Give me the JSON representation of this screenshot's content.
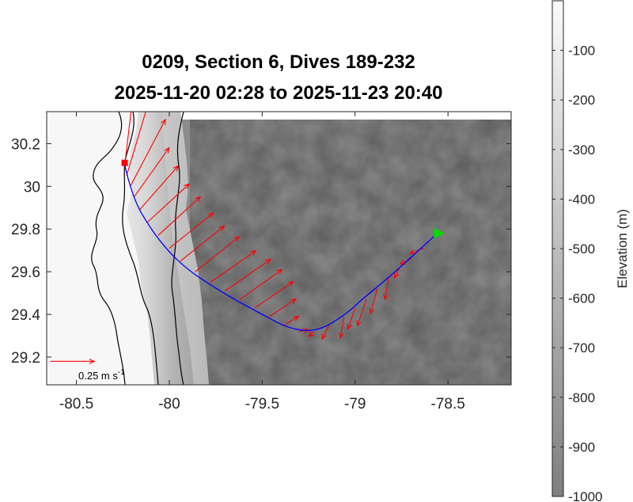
{
  "chart_data": {
    "type": "map",
    "title_line1": "0209, Section 6, Dives 189-232",
    "title_line2": "2025-11-20 02:28 to 2025-11-23 20:40",
    "x_ticks": [
      -80.5,
      -80,
      -79.5,
      -79,
      -78.5
    ],
    "x_tick_labels": [
      "-80.5",
      "-80",
      "-79.5",
      "-79",
      "-78.5"
    ],
    "y_ticks": [
      29.2,
      29.4,
      29.6,
      29.8,
      30,
      30.2
    ],
    "y_tick_labels": [
      "29.2",
      "29.4",
      "29.6",
      "29.8",
      "30",
      "30.2"
    ],
    "xlim": [
      -80.66,
      -78.16
    ],
    "ylim": [
      29.07,
      30.35
    ],
    "colorbar": {
      "label": "Elevation (m)",
      "range": [
        -1000,
        0
      ],
      "ticks": [
        -100,
        -200,
        -300,
        -400,
        -500,
        -600,
        -700,
        -800,
        -900,
        -1000
      ],
      "tick_labels": [
        "-100",
        "-200",
        "-300",
        "-400",
        "-500",
        "-600",
        "-700",
        "-800",
        "-900",
        "-1000"
      ]
    },
    "track": [
      [
        -80.24,
        30.1
      ],
      [
        -80.2,
        29.95
      ],
      [
        -80.1,
        29.8
      ],
      [
        -80.0,
        29.69
      ],
      [
        -79.9,
        29.61
      ],
      [
        -79.8,
        29.55
      ],
      [
        -79.65,
        29.47
      ],
      [
        -79.5,
        29.4
      ],
      [
        -79.35,
        29.33
      ],
      [
        -79.2,
        29.32
      ],
      [
        -79.05,
        29.4
      ],
      [
        -78.95,
        29.48
      ],
      [
        -78.85,
        29.55
      ],
      [
        -78.72,
        29.65
      ],
      [
        -78.57,
        29.77
      ]
    ],
    "start_marker": {
      "lon": -80.24,
      "lat": 30.11
    },
    "end_marker": {
      "lon": -78.55,
      "lat": 29.78
    },
    "current_vectors": [
      {
        "lon": -80.24,
        "lat": 30.1,
        "u": 0.05,
        "v": 0.42
      },
      {
        "lon": -80.23,
        "lat": 30.05,
        "u": 0.12,
        "v": 0.4
      },
      {
        "lon": -80.21,
        "lat": 30.0,
        "u": 0.2,
        "v": 0.38
      },
      {
        "lon": -80.19,
        "lat": 29.95,
        "u": 0.2,
        "v": 0.28
      },
      {
        "lon": -80.16,
        "lat": 29.89,
        "u": 0.22,
        "v": 0.25
      },
      {
        "lon": -80.12,
        "lat": 29.83,
        "u": 0.24,
        "v": 0.22
      },
      {
        "lon": -80.06,
        "lat": 29.77,
        "u": 0.24,
        "v": 0.22
      },
      {
        "lon": -80.0,
        "lat": 29.71,
        "u": 0.25,
        "v": 0.2
      },
      {
        "lon": -79.94,
        "lat": 29.65,
        "u": 0.25,
        "v": 0.2
      },
      {
        "lon": -79.86,
        "lat": 29.6,
        "u": 0.25,
        "v": 0.2
      },
      {
        "lon": -79.78,
        "lat": 29.55,
        "u": 0.26,
        "v": 0.18
      },
      {
        "lon": -79.7,
        "lat": 29.51,
        "u": 0.26,
        "v": 0.18
      },
      {
        "lon": -79.62,
        "lat": 29.47,
        "u": 0.24,
        "v": 0.17
      },
      {
        "lon": -79.54,
        "lat": 29.43,
        "u": 0.22,
        "v": 0.15
      },
      {
        "lon": -79.46,
        "lat": 29.39,
        "u": 0.15,
        "v": 0.1
      },
      {
        "lon": -79.38,
        "lat": 29.35,
        "u": 0.08,
        "v": 0.05
      },
      {
        "lon": -79.3,
        "lat": 29.32,
        "u": 0.05,
        "v": 0.01
      },
      {
        "lon": -79.22,
        "lat": 29.32,
        "u": -0.03,
        "v": -0.03
      },
      {
        "lon": -79.14,
        "lat": 29.35,
        "u": -0.04,
        "v": -0.08
      },
      {
        "lon": -79.06,
        "lat": 29.39,
        "u": -0.02,
        "v": -0.12
      },
      {
        "lon": -79.0,
        "lat": 29.43,
        "u": -0.04,
        "v": -0.12
      },
      {
        "lon": -78.94,
        "lat": 29.47,
        "u": -0.05,
        "v": -0.15
      },
      {
        "lon": -78.88,
        "lat": 29.52,
        "u": -0.04,
        "v": -0.14
      },
      {
        "lon": -78.82,
        "lat": 29.57,
        "u": -0.02,
        "v": -0.12
      },
      {
        "lon": -78.76,
        "lat": 29.62,
        "u": -0.03,
        "v": -0.06
      },
      {
        "lon": -78.7,
        "lat": 29.66,
        "u": -0.06,
        "v": -0.03
      },
      {
        "lon": -78.63,
        "lat": 29.71,
        "u": -0.08,
        "v": -0.03
      }
    ],
    "scale_arrow": {
      "lon": -80.64,
      "lat": 29.18,
      "u": 0.25,
      "label": "0.25 m s",
      "label_exp": "-1"
    },
    "colors": {
      "track": "#0000ff",
      "vectors": "#ff0000",
      "start": "#ff0000",
      "end": "#00dd00",
      "contours": "#000000"
    }
  }
}
